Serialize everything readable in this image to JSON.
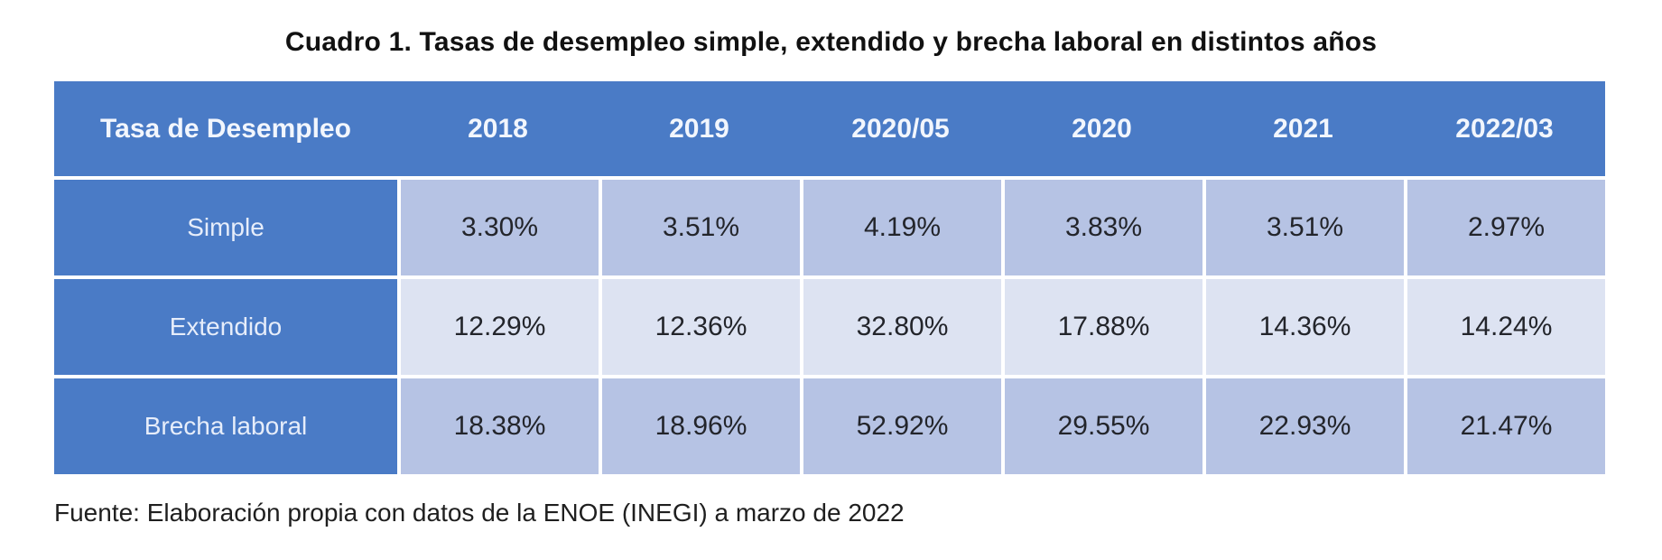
{
  "title": "Cuadro 1. Tasas de desempleo simple, extendido y brecha laboral en distintos años",
  "source": "Fuente: Elaboración propia con datos de la ENOE (INEGI) a marzo de 2022",
  "colors": {
    "header_blue": "#4a7bc6",
    "band_dark": "#b6c3e4",
    "band_light": "#dde3f2",
    "header_text": "#f2f6fd",
    "value_text": "#23252b"
  },
  "table": {
    "header": [
      "Tasa de Desempleo",
      "2018",
      "2019",
      "2020/05",
      "2020",
      "2021",
      "2022/03"
    ],
    "rows": [
      {
        "label": "Simple",
        "values": [
          "3.30%",
          "3.51%",
          "4.19%",
          "3.83%",
          "3.51%",
          "2.97%"
        ]
      },
      {
        "label": "Extendido",
        "values": [
          "12.29%",
          "12.36%",
          "32.80%",
          "17.88%",
          "14.36%",
          "14.24%"
        ]
      },
      {
        "label": "Brecha laboral",
        "values": [
          "18.38%",
          "18.96%",
          "52.92%",
          "29.55%",
          "22.93%",
          "21.47%"
        ]
      }
    ]
  },
  "chart_data": {
    "type": "table",
    "title": "Cuadro 1. Tasas de desempleo simple, extendido y brecha laboral en distintos años",
    "categories": [
      "2018",
      "2019",
      "2020/05",
      "2020",
      "2021",
      "2022/03"
    ],
    "series": [
      {
        "name": "Simple",
        "values": [
          3.3,
          3.51,
          4.19,
          3.83,
          3.51,
          2.97
        ]
      },
      {
        "name": "Extendido",
        "values": [
          12.29,
          12.36,
          32.8,
          17.88,
          14.36,
          14.24
        ]
      },
      {
        "name": "Brecha laboral",
        "values": [
          18.38,
          18.96,
          52.92,
          29.55,
          22.93,
          21.47
        ]
      }
    ],
    "unit": "%",
    "footnote": "Fuente: Elaboración propia con datos de la ENOE (INEGI) a marzo de 2022"
  }
}
